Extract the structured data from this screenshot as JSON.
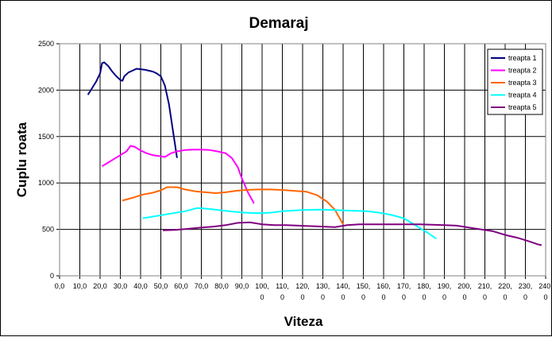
{
  "chart_data": {
    "type": "line",
    "title": "Demaraj",
    "xlabel": "Viteza",
    "ylabel": "Cuplu roata",
    "xlim": [
      0,
      240
    ],
    "ylim": [
      0,
      2500
    ],
    "x_ticks": [
      0,
      10,
      20,
      30,
      40,
      50,
      60,
      70,
      80,
      90,
      100,
      110,
      120,
      130,
      140,
      150,
      160,
      170,
      180,
      190,
      200,
      210,
      220,
      230,
      240
    ],
    "x_tick_labels": [
      [
        "0,0"
      ],
      [
        "10,0"
      ],
      [
        "20,0"
      ],
      [
        "30,0"
      ],
      [
        "40,0"
      ],
      [
        "50,0"
      ],
      [
        "60,0"
      ],
      [
        "70,0"
      ],
      [
        "80,0"
      ],
      [
        "90,0"
      ],
      [
        "100,",
        "0"
      ],
      [
        "110,",
        "0"
      ],
      [
        "120,",
        "0"
      ],
      [
        "130,",
        "0"
      ],
      [
        "140,",
        "0"
      ],
      [
        "150,",
        "0"
      ],
      [
        "160,",
        "0"
      ],
      [
        "170,",
        "0"
      ],
      [
        "180,",
        "0"
      ],
      [
        "190,",
        "0"
      ],
      [
        "200,",
        "0"
      ],
      [
        "210,",
        "0"
      ],
      [
        "220,",
        "0"
      ],
      [
        "230,",
        "0"
      ],
      [
        "240,",
        "0"
      ]
    ],
    "y_ticks": [
      0,
      500,
      1000,
      1500,
      2000,
      2500
    ],
    "y_tick_labels": [
      "0",
      "500",
      "1000",
      "1500",
      "2000",
      "2500"
    ],
    "grid": true,
    "legend_position": "top-right",
    "series": [
      {
        "name": "treapta 1",
        "color": "#000080",
        "points": [
          [
            14,
            1950
          ],
          [
            16,
            2020
          ],
          [
            18,
            2090
          ],
          [
            20,
            2180
          ],
          [
            21,
            2290
          ],
          [
            22,
            2300
          ],
          [
            24,
            2260
          ],
          [
            26,
            2200
          ],
          [
            28,
            2150
          ],
          [
            30,
            2110
          ],
          [
            31,
            2100
          ],
          [
            32,
            2150
          ],
          [
            34,
            2190
          ],
          [
            36,
            2210
          ],
          [
            38,
            2230
          ],
          [
            40,
            2225
          ],
          [
            42,
            2220
          ],
          [
            44,
            2210
          ],
          [
            46,
            2200
          ],
          [
            48,
            2180
          ],
          [
            50,
            2150
          ],
          [
            52,
            2050
          ],
          [
            54,
            1850
          ],
          [
            56,
            1560
          ],
          [
            58,
            1270
          ]
        ]
      },
      {
        "name": "treapta 2",
        "color": "#ff00ff",
        "points": [
          [
            21,
            1180
          ],
          [
            24,
            1220
          ],
          [
            27,
            1260
          ],
          [
            30,
            1300
          ],
          [
            33,
            1340
          ],
          [
            35,
            1400
          ],
          [
            37,
            1390
          ],
          [
            40,
            1350
          ],
          [
            43,
            1320
          ],
          [
            46,
            1300
          ],
          [
            49,
            1290
          ],
          [
            52,
            1280
          ],
          [
            55,
            1320
          ],
          [
            58,
            1340
          ],
          [
            62,
            1355
          ],
          [
            66,
            1360
          ],
          [
            70,
            1360
          ],
          [
            74,
            1355
          ],
          [
            78,
            1340
          ],
          [
            82,
            1320
          ],
          [
            85,
            1270
          ],
          [
            88,
            1170
          ],
          [
            90,
            1050
          ],
          [
            93,
            900
          ],
          [
            96,
            780
          ]
        ]
      },
      {
        "name": "treapta 3",
        "color": "#ff6600",
        "points": [
          [
            31,
            810
          ],
          [
            36,
            840
          ],
          [
            41,
            875
          ],
          [
            46,
            895
          ],
          [
            50,
            920
          ],
          [
            53,
            955
          ],
          [
            58,
            955
          ],
          [
            62,
            930
          ],
          [
            67,
            910
          ],
          [
            72,
            900
          ],
          [
            77,
            890
          ],
          [
            82,
            900
          ],
          [
            87,
            915
          ],
          [
            92,
            925
          ],
          [
            98,
            930
          ],
          [
            104,
            930
          ],
          [
            110,
            925
          ],
          [
            116,
            915
          ],
          [
            122,
            905
          ],
          [
            127,
            870
          ],
          [
            132,
            800
          ],
          [
            136,
            710
          ],
          [
            140,
            555
          ]
        ]
      },
      {
        "name": "treapta 4",
        "color": "#00ffff",
        "points": [
          [
            41,
            620
          ],
          [
            48,
            645
          ],
          [
            55,
            670
          ],
          [
            62,
            695
          ],
          [
            68,
            730
          ],
          [
            74,
            720
          ],
          [
            80,
            705
          ],
          [
            86,
            690
          ],
          [
            92,
            680
          ],
          [
            98,
            675
          ],
          [
            104,
            680
          ],
          [
            110,
            695
          ],
          [
            116,
            705
          ],
          [
            122,
            710
          ],
          [
            128,
            712
          ],
          [
            134,
            710
          ],
          [
            140,
            705
          ],
          [
            146,
            700
          ],
          [
            152,
            695
          ],
          [
            158,
            680
          ],
          [
            164,
            655
          ],
          [
            170,
            620
          ],
          [
            176,
            540
          ],
          [
            182,
            460
          ],
          [
            186,
            400
          ]
        ]
      },
      {
        "name": "treapta 5",
        "color": "#800080",
        "points": [
          [
            51,
            490
          ],
          [
            57,
            495
          ],
          [
            63,
            505
          ],
          [
            70,
            520
          ],
          [
            76,
            530
          ],
          [
            82,
            545
          ],
          [
            88,
            570
          ],
          [
            94,
            575
          ],
          [
            100,
            555
          ],
          [
            106,
            545
          ],
          [
            112,
            545
          ],
          [
            118,
            540
          ],
          [
            124,
            535
          ],
          [
            130,
            530
          ],
          [
            136,
            525
          ],
          [
            142,
            545
          ],
          [
            148,
            555
          ],
          [
            154,
            555
          ],
          [
            160,
            555
          ],
          [
            166,
            555
          ],
          [
            172,
            555
          ],
          [
            178,
            555
          ],
          [
            184,
            550
          ],
          [
            190,
            545
          ],
          [
            196,
            540
          ],
          [
            202,
            520
          ],
          [
            208,
            500
          ],
          [
            214,
            480
          ],
          [
            220,
            440
          ],
          [
            226,
            410
          ],
          [
            232,
            370
          ],
          [
            236,
            340
          ],
          [
            238,
            330
          ]
        ]
      }
    ]
  }
}
